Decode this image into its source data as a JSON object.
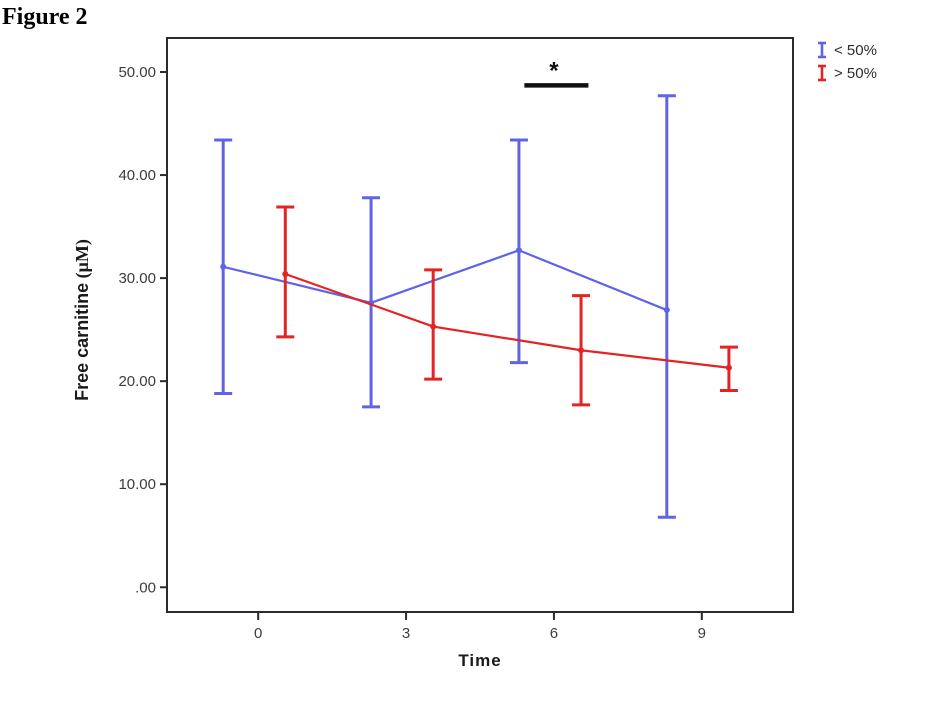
{
  "figure_label": "Figure 2",
  "chart_data": {
    "type": "line",
    "title": "Figure 2",
    "xlabel": "Time",
    "ylabel_main": "Free carnitine",
    "ylabel_unit": " (μM)",
    "x_ticks": [
      0,
      3,
      6,
      9
    ],
    "y_ticks": [
      {
        "value": 50,
        "label": "50.00"
      },
      {
        "value": 40,
        "label": "40.00"
      },
      {
        "value": 30,
        "label": "30.00"
      },
      {
        "value": 20,
        "label": "20.00"
      },
      {
        "value": 10,
        "label": "10.00"
      },
      {
        "value": 0,
        "label": ".00"
      }
    ],
    "x_domain": [
      -1.85,
      10.85
    ],
    "y_domain": [
      -2.4,
      53.3
    ],
    "grid": false,
    "legend_position": "top-right",
    "categories": [
      0,
      3,
      6,
      9
    ],
    "series": [
      {
        "name": "< 50%",
        "color": "#6163e6",
        "x_offset": -0.71,
        "means": [
          31.1,
          27.6,
          32.7,
          26.9
        ],
        "upper": [
          43.4,
          37.8,
          43.4,
          47.7
        ],
        "lower": [
          18.8,
          17.5,
          21.8,
          6.8
        ]
      },
      {
        "name": "> 50%",
        "color": "#e32424",
        "x_offset": 0.55,
        "means": [
          30.4,
          25.3,
          23.0,
          21.3
        ],
        "upper": [
          36.9,
          30.8,
          28.3,
          23.3
        ],
        "lower": [
          24.3,
          20.2,
          17.7,
          19.1
        ]
      }
    ],
    "significance": {
      "label": "*",
      "x_start": 5.4,
      "x_end": 6.7,
      "y_value": 48.7,
      "label_x": 6.0
    },
    "frame_color": "#2b2b2b",
    "tick_label_color": "#3c3c3c",
    "axis_title_color": "#1a1a1a"
  }
}
